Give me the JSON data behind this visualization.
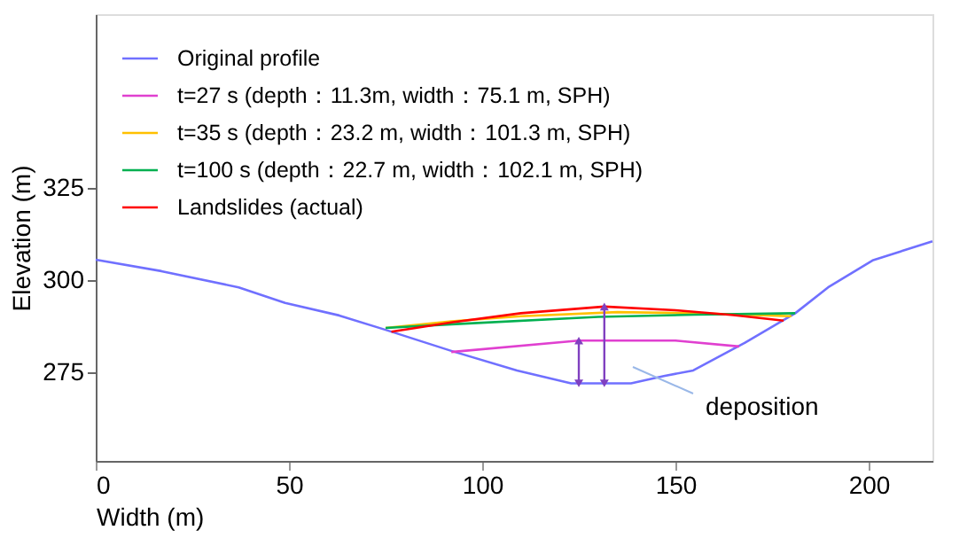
{
  "chart_data": {
    "type": "line",
    "xlabel": "Width (m)",
    "ylabel": "Elevation (m)",
    "xlim": [
      0,
      216.5
    ],
    "ylim": [
      251,
      372
    ],
    "xticks": [
      0,
      50,
      100,
      150,
      200
    ],
    "yticks": [
      275,
      300,
      325
    ],
    "grid": false,
    "legend": "top left",
    "marker": "none",
    "line_style": "solid",
    "series": [
      {
        "name": "Original profile",
        "color": "#7070ff",
        "x": [
          0,
          17,
          37,
          49,
          63,
          75,
          92,
          109,
          123,
          138.5,
          147,
          154.6,
          168,
          181,
          189.5,
          201,
          216.5
        ],
        "values": [
          305.5,
          302.4,
          298,
          293.8,
          290.4,
          286.5,
          280.8,
          275.5,
          272,
          272,
          274,
          275.5,
          283,
          291,
          298,
          305.3,
          310.5
        ]
      },
      {
        "name": "t=27 s   (depth：11.3m,   width：75.1 m, SPH)",
        "color": "#e040d0",
        "x": [
          92,
          125,
          150,
          166.5
        ],
        "values": [
          280.5,
          283.6,
          283.6,
          282
        ]
      },
      {
        "name": "t=35 s   (depth：23.2 m,   width：101.3 m, SPH)",
        "color": "#ffc000",
        "x": [
          75,
          92,
          110,
          135,
          155,
          180
        ],
        "values": [
          287,
          288.8,
          290.2,
          291.3,
          291,
          290.2
        ]
      },
      {
        "name": "t=100 s (depth：22.7 m,   width：102.1 m, SPH)",
        "color": "#00b050",
        "x": [
          75,
          92,
          130,
          155,
          181
        ],
        "values": [
          287,
          288,
          290,
          290.6,
          291
        ]
      },
      {
        "name": "Landslides (actual)",
        "color": "#ff0000",
        "x": [
          76.5,
          92,
          110,
          131.6,
          150,
          165,
          178
        ],
        "values": [
          286,
          288.5,
          291,
          292.8,
          291.8,
          290.5,
          289
        ]
      }
    ],
    "annotations": [
      "deposition"
    ]
  }
}
